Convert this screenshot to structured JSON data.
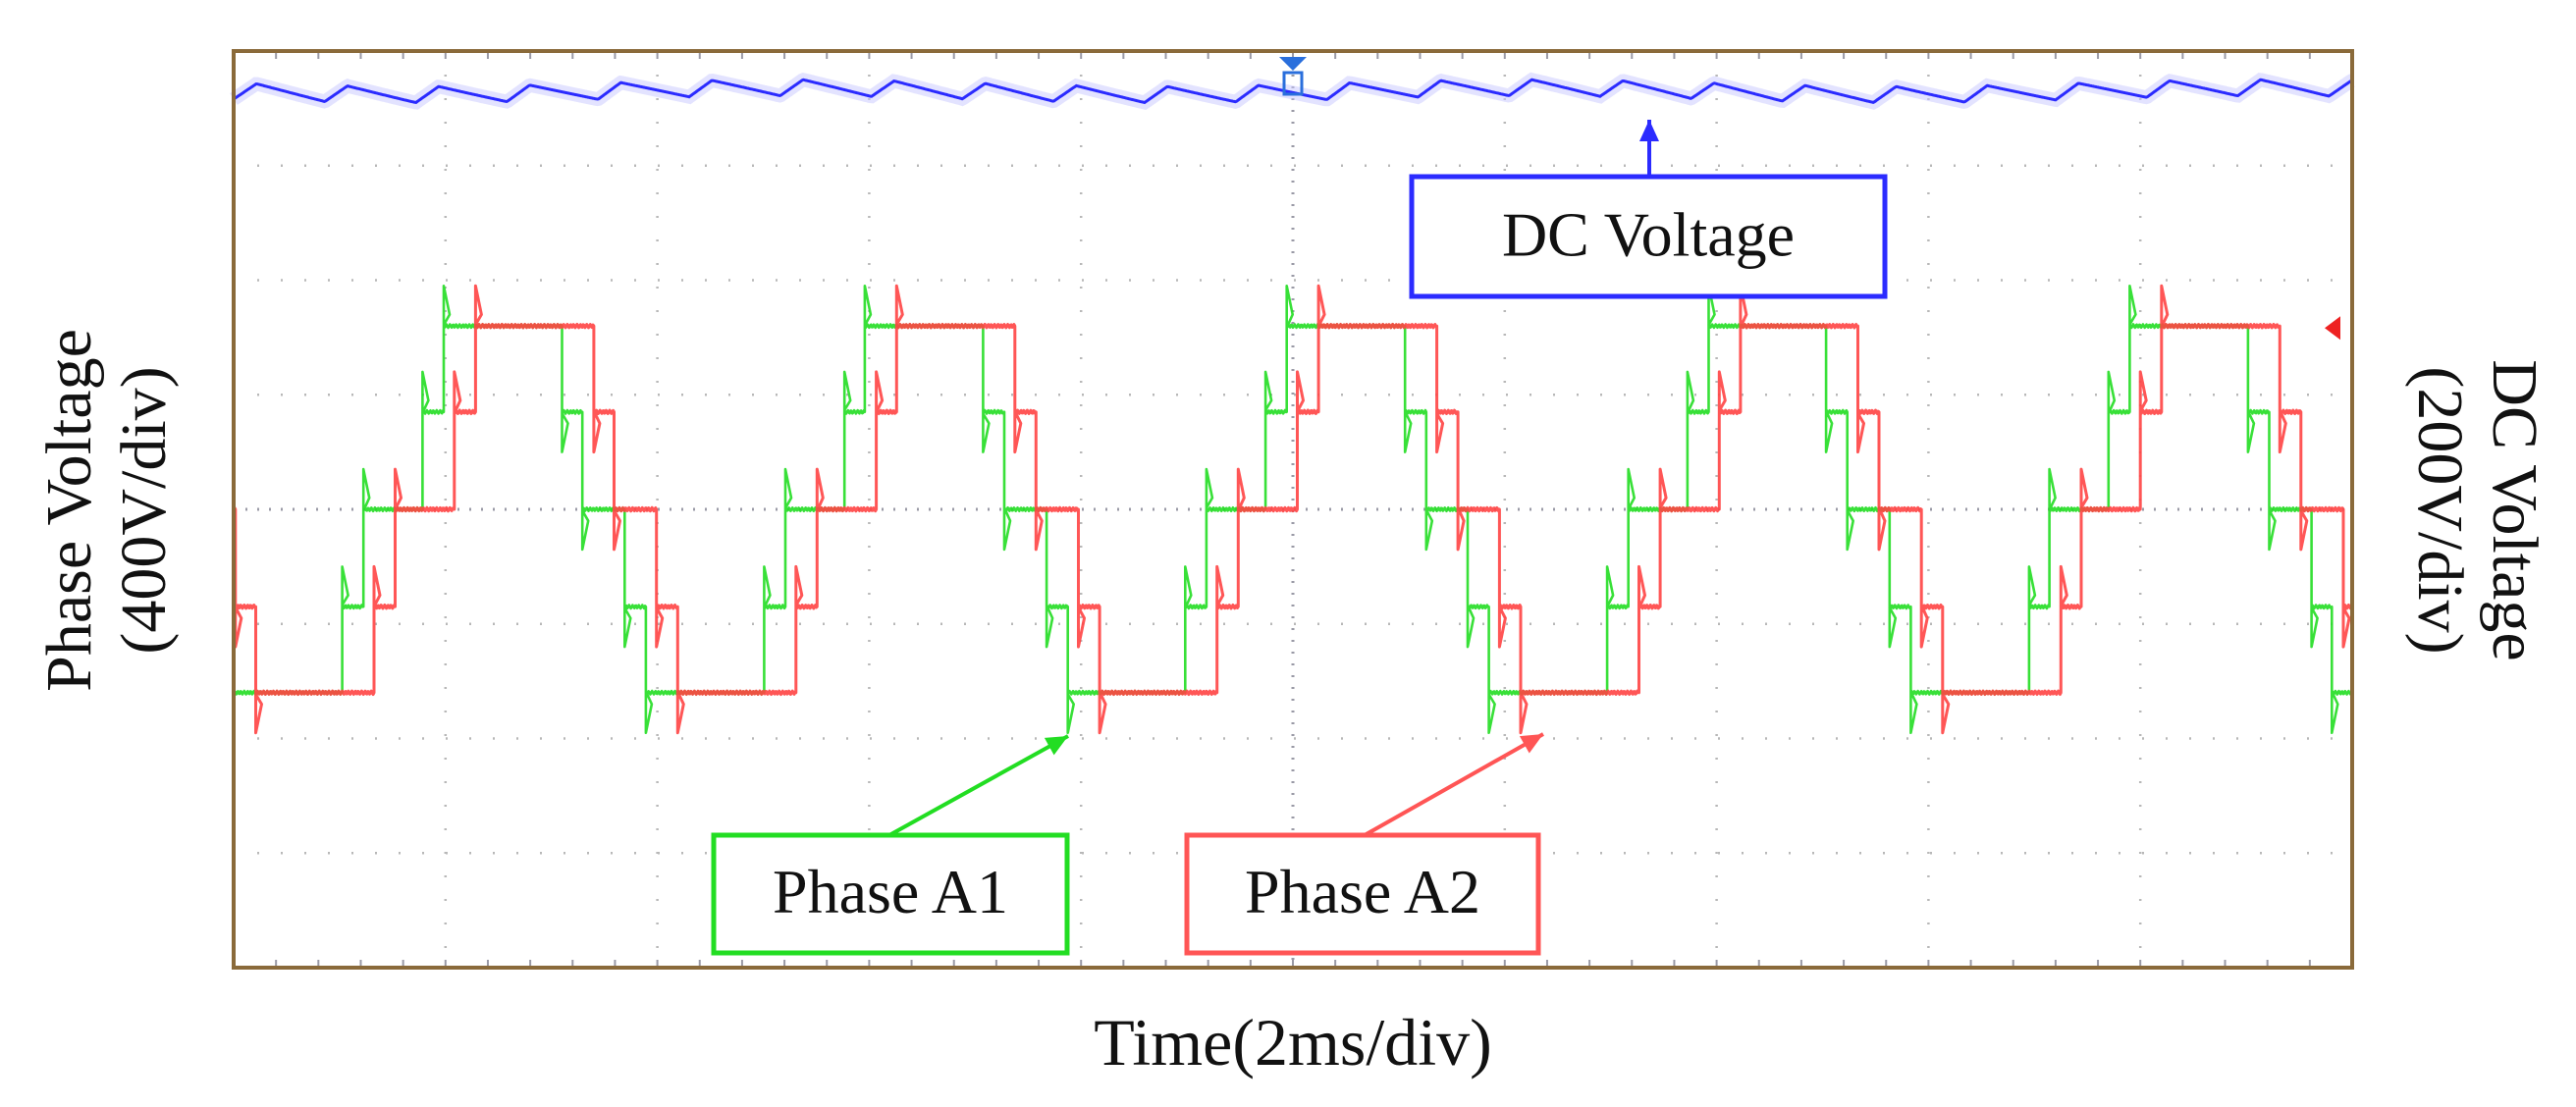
{
  "chart_data": {
    "type": "line",
    "title": "",
    "xlabel": "Time(2ms/div)",
    "ylabel_left": [
      "Phase Voltage",
      "(400V/div)"
    ],
    "ylabel_right": [
      "DC Voltage",
      "(200V/div)"
    ],
    "x_divisions": 10,
    "y_divisions": 8,
    "grid": true,
    "xlim_ms": [
      0,
      20
    ],
    "series": [
      {
        "name": "DC Voltage",
        "color": "#2b2bff",
        "description_level_div": 3.65,
        "ripple_div": 0.07,
        "ripple_period_ms": 0.86
      },
      {
        "name": "Phase A1",
        "color": "#22dd22",
        "period_ms": 3.98,
        "phase_ms": 1.5,
        "levels_div": [
          -1.6,
          -0.85,
          0,
          0.85,
          1.6
        ]
      },
      {
        "name": "Phase A2",
        "color": "#ff4444",
        "period_ms": 3.98,
        "phase_ms": 1.8,
        "levels_div": [
          -1.6,
          -0.85,
          0,
          0.85,
          1.6
        ]
      }
    ],
    "annotations": [
      {
        "text": "DC Voltage",
        "color": "#2b2bff",
        "target": "DC Voltage"
      },
      {
        "text": "Phase A1",
        "color": "#22dd22",
        "target": "Phase A1"
      },
      {
        "text": "Phase A2",
        "color": "#ff5555",
        "target": "Phase A2"
      }
    ]
  }
}
